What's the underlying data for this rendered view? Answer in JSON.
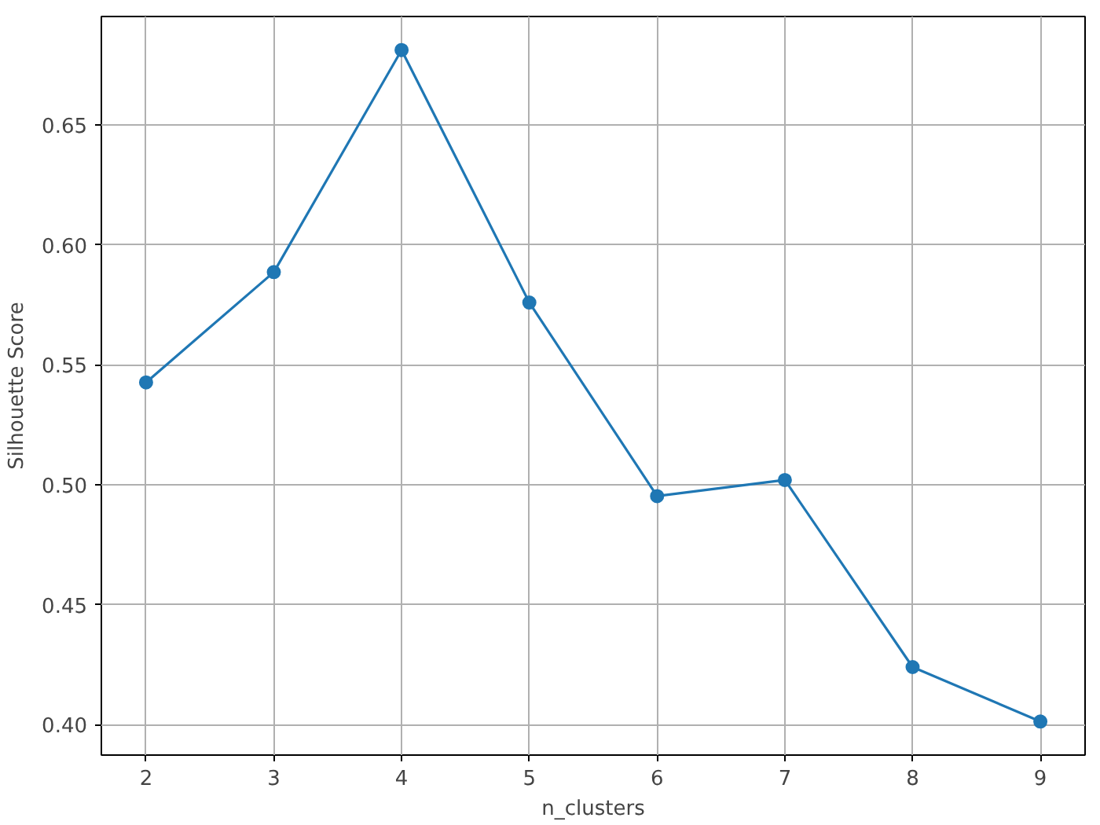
{
  "chart_data": {
    "type": "line",
    "xlabel": "n_clusters",
    "ylabel": "Silhouette Score",
    "x": [
      2,
      3,
      4,
      5,
      6,
      7,
      8,
      9
    ],
    "series": [
      {
        "color": "#1f77b4",
        "values": [
          0.5427,
          0.5887,
          0.6813,
          0.576,
          0.4953,
          0.502,
          0.424,
          0.4013
        ]
      }
    ],
    "xlim": [
      1.65,
      9.35
    ],
    "ylim": [
      0.3873,
      0.6953
    ],
    "xticks": [
      2,
      3,
      4,
      5,
      6,
      7,
      8,
      9
    ],
    "yticks": [
      {
        "value": 0.4,
        "label": "0.40"
      },
      {
        "value": 0.45,
        "label": "0.45"
      },
      {
        "value": 0.5,
        "label": "0.50"
      },
      {
        "value": 0.55,
        "label": "0.55"
      },
      {
        "value": 0.6,
        "label": "0.60"
      },
      {
        "value": 0.65,
        "label": "0.65"
      }
    ],
    "grid": true,
    "marker": "circle",
    "line_style": "solid"
  }
}
